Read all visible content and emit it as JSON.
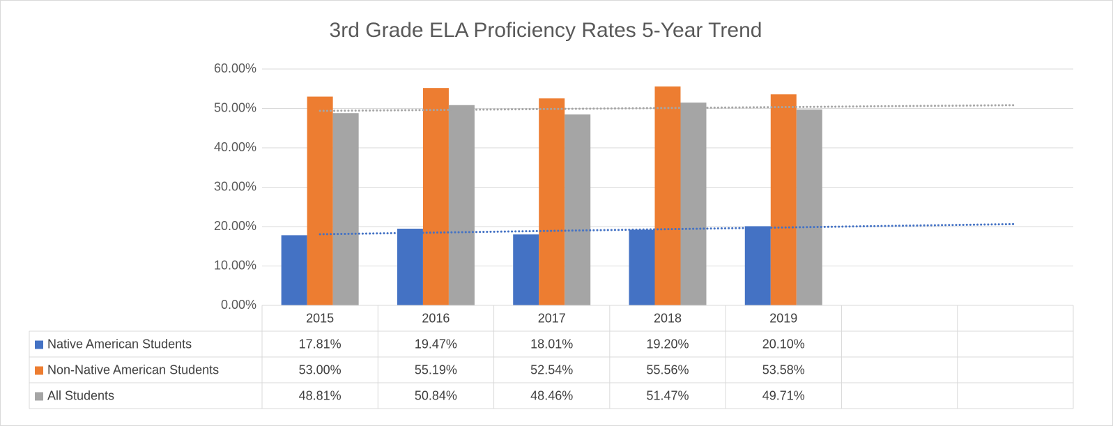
{
  "chart_data": {
    "type": "bar",
    "title": "3rd Grade ELA Proficiency Rates 5-Year Trend",
    "categories": [
      "2015",
      "2016",
      "2017",
      "2018",
      "2019",
      null,
      null
    ],
    "series": [
      {
        "name": "Native American Students",
        "color": "#4472c4",
        "trendline": true,
        "values": [
          17.81,
          19.47,
          18.01,
          19.2,
          20.1,
          null,
          null
        ],
        "value_labels": [
          "17.81%",
          "19.47%",
          "18.01%",
          "19.20%",
          "20.10%",
          null,
          null
        ]
      },
      {
        "name": "Non-Native American Students",
        "color": "#ed7d31",
        "trendline": false,
        "values": [
          53.0,
          55.19,
          52.54,
          55.56,
          53.58,
          null,
          null
        ],
        "value_labels": [
          "53.00%",
          "55.19%",
          "52.54%",
          "55.56%",
          "53.58%",
          null,
          null
        ]
      },
      {
        "name": "All Students",
        "color": "#a5a5a5",
        "trendline": true,
        "values": [
          48.81,
          50.84,
          48.46,
          51.47,
          49.71,
          null,
          null
        ],
        "value_labels": [
          "48.81%",
          "50.84%",
          "48.46%",
          "51.47%",
          "49.71%",
          null,
          null
        ]
      }
    ],
    "ylim": [
      0,
      60
    ],
    "yticks": [
      {
        "value": 0,
        "label": "0.00%"
      },
      {
        "value": 10,
        "label": "10.00%"
      },
      {
        "value": 20,
        "label": "20.00%"
      },
      {
        "value": 30,
        "label": "30.00%"
      },
      {
        "value": 40,
        "label": "40.00%"
      },
      {
        "value": 50,
        "label": "50.00%"
      },
      {
        "value": 60,
        "label": "60.00%"
      }
    ],
    "grid": true,
    "data_table": true
  }
}
